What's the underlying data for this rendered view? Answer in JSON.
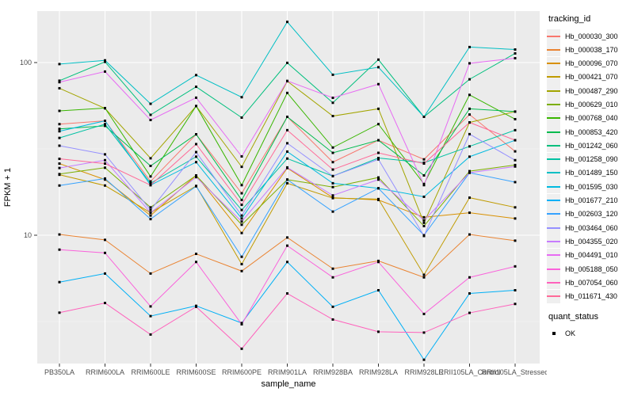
{
  "chart_data": {
    "type": "line",
    "title": "",
    "xlabel": "sample_name",
    "ylabel": "FPKM + 1",
    "y_scale": "log10",
    "y_ticks": [
      100,
      10
    ],
    "y_minor_gridlines": [
      31.62,
      3.162
    ],
    "ylim_approx": [
      1.7,
      196
    ],
    "grid": "on",
    "legend_position": "right",
    "panel_background": "#EBEBEB",
    "gridline_color": "#FFFFFF",
    "point_shape": "black-square",
    "categories": [
      "PB350LA",
      "RRIM600LA",
      "RRIM600LE",
      "RRIM600SE",
      "RRIM600PE",
      "RRIM901LA",
      "RRIM928BA",
      "RRIM928LA",
      "RRIM928LE",
      "RRII105LA_Control",
      "RRII105LA_Stressed"
    ],
    "series": [
      {
        "name": "Hb_000030_300",
        "color": "#F8766D",
        "values": [
          44,
          46,
          20.5,
          38.4,
          17.5,
          48.5,
          26.5,
          35.5,
          27.5,
          50,
          30.6
        ]
      },
      {
        "name": "Hb_000038_170",
        "color": "#EA8331",
        "values": [
          10.1,
          9.4,
          6.0,
          7.8,
          6.2,
          9.7,
          6.4,
          7.1,
          5.7,
          10.1,
          9.3
        ]
      },
      {
        "name": "Hb_000096_070",
        "color": "#D89000",
        "values": [
          26,
          21,
          13,
          22.2,
          10.3,
          24.5,
          16.5,
          16,
          12.7,
          13.5,
          12.5
        ]
      },
      {
        "name": "Hb_000421_070",
        "color": "#C09B00",
        "values": [
          22.4,
          19.4,
          13.5,
          19.3,
          6.8,
          20,
          16.4,
          16.2,
          5.9,
          16.5,
          14.5
        ]
      },
      {
        "name": "Hb_000487_290",
        "color": "#A3A500",
        "values": [
          71,
          54.3,
          27.9,
          56,
          24.9,
          78,
          49,
          54,
          11.8,
          45,
          52
        ]
      },
      {
        "name": "Hb_000629_010",
        "color": "#7CAE00",
        "values": [
          22.6,
          24.6,
          14.5,
          22.2,
          11.5,
          21,
          19,
          21.6,
          11.3,
          23.5,
          25.5
        ]
      },
      {
        "name": "Hb_000768_040",
        "color": "#39B600",
        "values": [
          52.5,
          54.5,
          21.9,
          56,
          19.5,
          66.7,
          32.2,
          44,
          19.8,
          65,
          47
        ]
      },
      {
        "name": "Hb_000853_420",
        "color": "#00BB4E",
        "values": [
          41.3,
          43,
          25.2,
          38.4,
          16,
          48.5,
          30,
          35.5,
          22.2,
          54,
          52
        ]
      },
      {
        "name": "Hb_001242_060",
        "color": "#00BF7D",
        "values": [
          78.5,
          101,
          49.8,
          72.4,
          48,
          99.6,
          58.5,
          104,
          48.5,
          80,
          113
        ]
      },
      {
        "name": "Hb_001258_090",
        "color": "#00C1A3",
        "values": [
          36.6,
          44,
          20,
          28.5,
          14,
          27.8,
          22,
          28,
          26.3,
          32.7,
          40.6
        ]
      },
      {
        "name": "Hb_001489_150",
        "color": "#00BFC4",
        "values": [
          98,
          103,
          57.7,
          84.6,
          63,
          172,
          85,
          94,
          48.5,
          123,
          119
        ]
      },
      {
        "name": "Hb_001595_030",
        "color": "#00BAE0",
        "values": [
          40,
          46,
          19.5,
          26.5,
          12.5,
          30.5,
          20,
          18.7,
          16.7,
          28.5,
          35.5
        ]
      },
      {
        "name": "Hb_001677_210",
        "color": "#00B0F6",
        "values": [
          5.35,
          6.0,
          3.4,
          3.9,
          3.1,
          7.0,
          3.85,
          4.8,
          1.9,
          4.6,
          4.8
        ]
      },
      {
        "name": "Hb_002603_120",
        "color": "#35A2FF",
        "values": [
          19.4,
          21.3,
          12.4,
          19.2,
          7.5,
          21,
          13.7,
          18.7,
          10,
          23,
          20.3
        ]
      },
      {
        "name": "Hb_003464_060",
        "color": "#9590FF",
        "values": [
          33,
          29.4,
          14,
          30.3,
          13,
          34.1,
          22,
          27.5,
          9.9,
          38.5,
          27.2
        ]
      },
      {
        "name": "Hb_004355_020",
        "color": "#C77CFF",
        "values": [
          24.5,
          27.2,
          13.5,
          21.7,
          12,
          24.7,
          17,
          21,
          12.2,
          23,
          25
        ]
      },
      {
        "name": "Hb_004491_010",
        "color": "#E76BF3",
        "values": [
          77,
          88.7,
          46.5,
          62.6,
          28.6,
          78.3,
          62.5,
          75,
          19.5,
          99,
          106
        ]
      },
      {
        "name": "Hb_005188_050",
        "color": "#FA62DB",
        "values": [
          8.25,
          7.9,
          3.87,
          7.0,
          3.05,
          8.7,
          5.7,
          7.0,
          3.5,
          5.7,
          6.6
        ]
      },
      {
        "name": "Hb_007054_060",
        "color": "#FF62BC",
        "values": [
          3.56,
          4.05,
          2.66,
          3.85,
          2.2,
          4.6,
          3.25,
          2.76,
          2.73,
          3.55,
          4.0
        ]
      },
      {
        "name": "Hb_011671_430",
        "color": "#FF6A98",
        "values": [
          27.7,
          26,
          19.5,
          33.7,
          15,
          40.6,
          24,
          30,
          26,
          45,
          35.5
        ]
      }
    ]
  },
  "legend": {
    "tracking_title": "tracking_id",
    "quant_title": "quant_status",
    "quant_items": [
      {
        "label": "OK",
        "marker": "black-square"
      }
    ]
  }
}
